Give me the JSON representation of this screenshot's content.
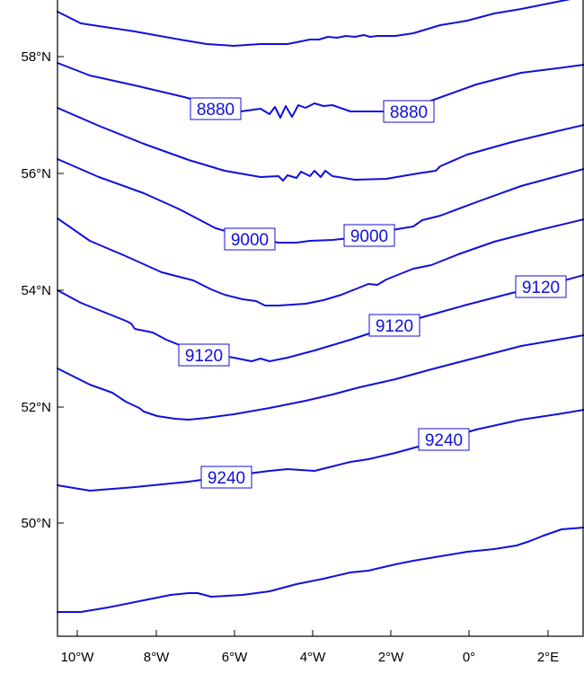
{
  "map": {
    "x_ticks": [
      "10°W",
      "8°W",
      "6°W",
      "4°W",
      "2°W",
      "0°",
      "2°E"
    ],
    "y_ticks": [
      "58°N",
      "56°N",
      "54°N",
      "52°N",
      "50°N"
    ],
    "line_color": "#1010dd",
    "contour_labels": [
      {
        "text": "8880"
      },
      {
        "text": "8880"
      },
      {
        "text": "9000"
      },
      {
        "text": "9000"
      },
      {
        "text": "9120"
      },
      {
        "text": "9120"
      },
      {
        "text": "9120"
      },
      {
        "text": "9240"
      },
      {
        "text": "9240"
      }
    ]
  }
}
